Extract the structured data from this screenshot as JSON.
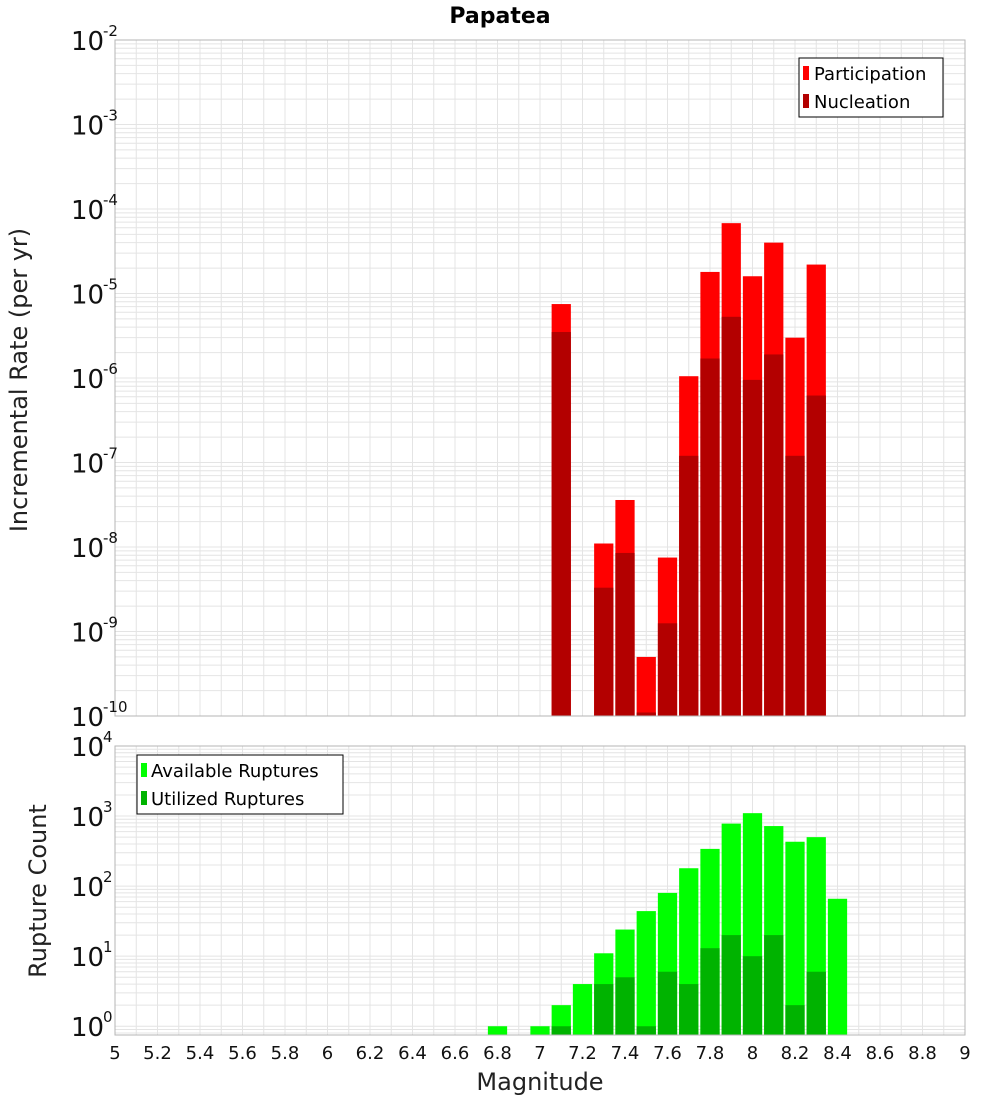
{
  "chart_data": [
    {
      "type": "bar",
      "title": "Papatea",
      "ylabel": "Incremental Rate (per yr)",
      "xlabel": "",
      "yscale": "log",
      "ylim": [
        1e-10,
        0.01
      ],
      "xlim": [
        5,
        9
      ],
      "bin_width": 0.1,
      "y_tick_exponents": [
        -2,
        -3,
        -4,
        -5,
        -6,
        -7,
        -8,
        -9,
        -10
      ],
      "y_tick_base": "10",
      "legend_position": "top-right",
      "x": [
        7.1,
        7.3,
        7.4,
        7.5,
        7.6,
        7.7,
        7.8,
        7.9,
        8.0,
        8.1,
        8.2,
        8.3
      ],
      "series": [
        {
          "name": "Participation",
          "color": "#ff0000",
          "values": [
            7.5e-06,
            1.1e-08,
            3.6e-08,
            5e-10,
            7.5e-09,
            1.05e-06,
            1.8e-05,
            6.8e-05,
            1.6e-05,
            4e-05,
            3e-06,
            2.2e-05
          ]
        },
        {
          "name": "Nucleation",
          "color": "#b30000",
          "values": [
            3.5e-06,
            3.3e-09,
            8.5e-09,
            1.1e-10,
            1.25e-09,
            1.2e-07,
            1.7e-06,
            5.3e-06,
            9.5e-07,
            1.9e-06,
            1.2e-07,
            6.2e-07
          ]
        }
      ]
    },
    {
      "type": "bar",
      "title": "",
      "ylabel": "Rupture Count",
      "xlabel": "Magnitude",
      "yscale": "log",
      "ylim": [
        0.75,
        10000
      ],
      "xlim": [
        5,
        9
      ],
      "bin_width": 0.1,
      "y_tick_exponents": [
        4,
        3,
        2,
        1,
        0
      ],
      "y_tick_base": "10",
      "x_ticks": [
        "5",
        "5.2",
        "5.4",
        "5.6",
        "5.8",
        "6",
        "6.2",
        "6.4",
        "6.6",
        "6.8",
        "7",
        "7.2",
        "7.4",
        "7.6",
        "7.8",
        "8",
        "8.2",
        "8.4",
        "8.6",
        "8.8",
        "9"
      ],
      "legend_position": "top-left",
      "x": [
        6.8,
        7.0,
        7.1,
        7.2,
        7.3,
        7.4,
        7.5,
        7.6,
        7.7,
        7.8,
        7.9,
        8.0,
        8.1,
        8.2,
        8.3,
        8.4
      ],
      "series": [
        {
          "name": "Available Ruptures",
          "color": "#00ff00",
          "values": [
            1,
            1,
            2,
            4,
            11,
            24,
            44,
            80,
            180,
            340,
            780,
            1100,
            720,
            430,
            500,
            66
          ]
        },
        {
          "name": "Utilized Ruptures",
          "color": "#00b300",
          "values": [
            0,
            0,
            1,
            0,
            4,
            5,
            1,
            6,
            4,
            13,
            20,
            10,
            20,
            2,
            6,
            0
          ]
        }
      ]
    }
  ]
}
